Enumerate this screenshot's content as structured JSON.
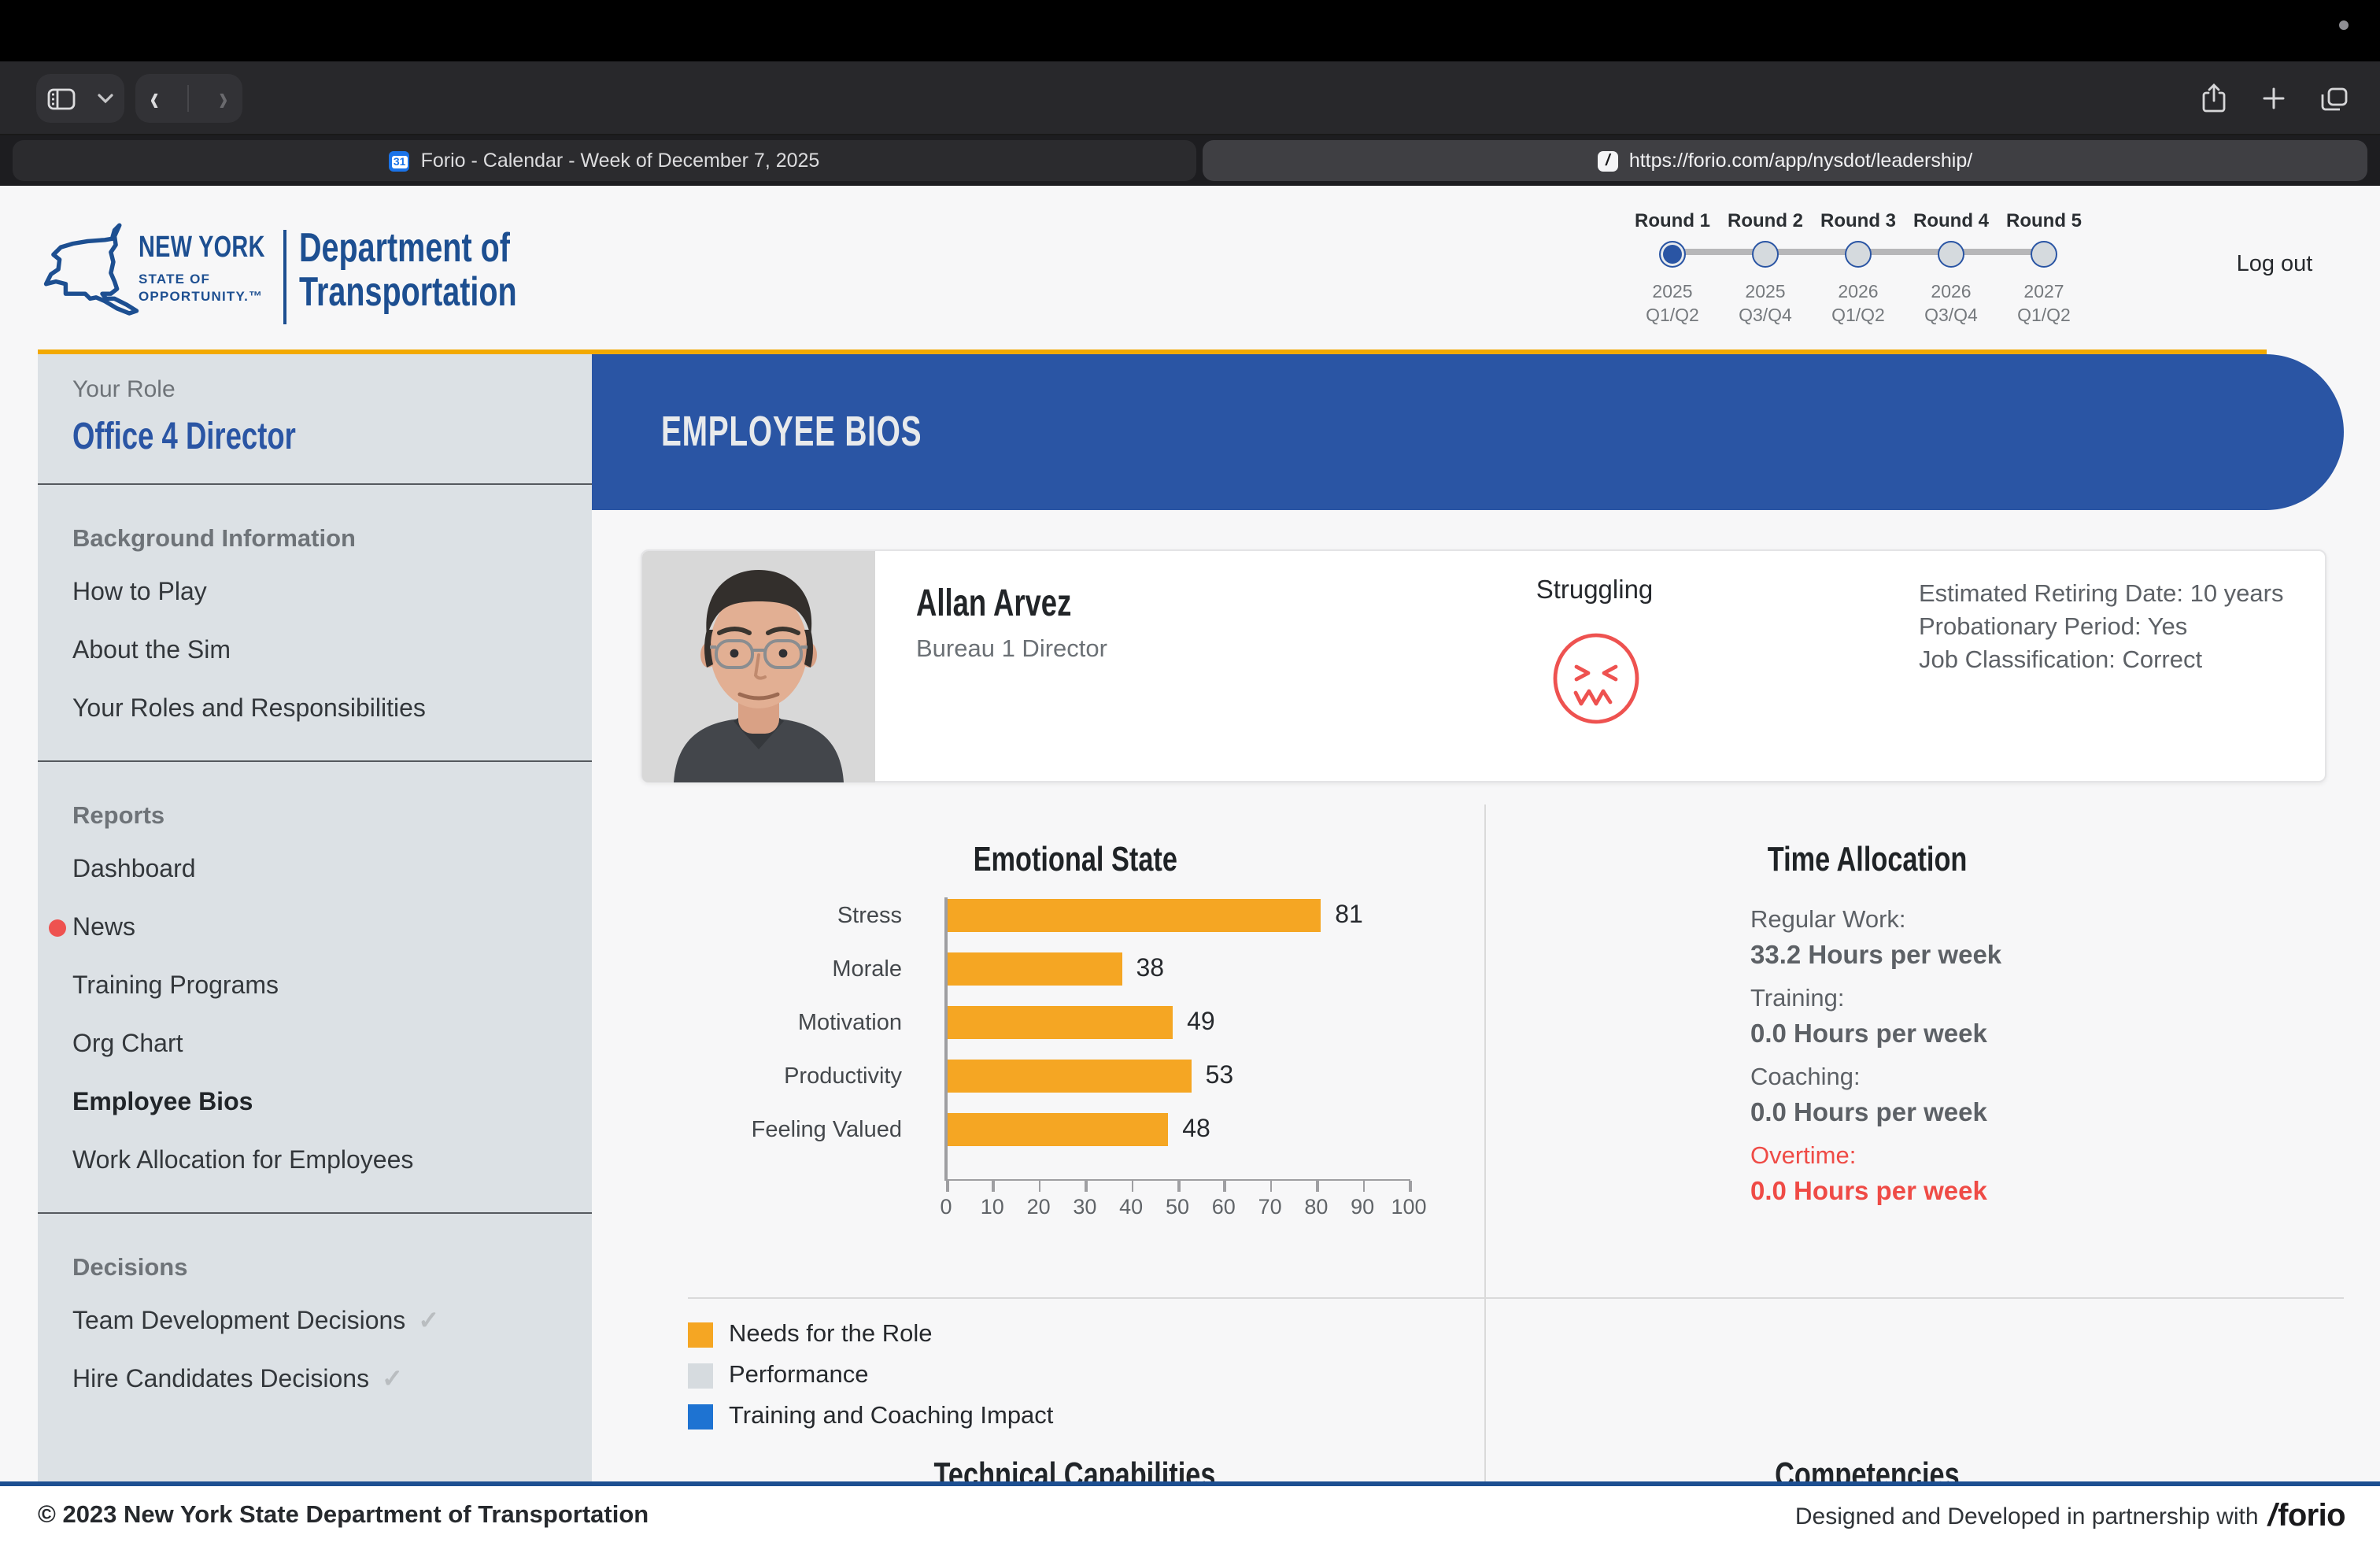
{
  "browser": {
    "toolbar": {
      "url_display": "forio.com",
      "icons": [
        "sidebar-toggle",
        "chevron-down",
        "back",
        "forward",
        "extension-lock",
        "reader",
        "reload",
        "share",
        "new-tab",
        "tab-overview"
      ]
    },
    "tabs": [
      {
        "title": "Forio - Calendar - Week of December 7, 2025",
        "favicon": "google-calendar",
        "active": false
      },
      {
        "title": "https://forio.com/app/nysdot/leadership/",
        "favicon": "forio",
        "active": true
      }
    ]
  },
  "header": {
    "logo": {
      "line1": "NEW YORK",
      "line2": "STATE OF",
      "line3": "OPPORTUNITY.™",
      "dept_line1": "Department of",
      "dept_line2": "Transportation"
    },
    "rounds": [
      {
        "label": "Round 1",
        "year": "2025",
        "quarters": "Q1/Q2",
        "active": true
      },
      {
        "label": "Round 2",
        "year": "2025",
        "quarters": "Q3/Q4",
        "active": false
      },
      {
        "label": "Round 3",
        "year": "2026",
        "quarters": "Q1/Q2",
        "active": false
      },
      {
        "label": "Round 4",
        "year": "2026",
        "quarters": "Q3/Q4",
        "active": false
      },
      {
        "label": "Round 5",
        "year": "2027",
        "quarters": "Q1/Q2",
        "active": false
      }
    ],
    "logout_label": "Log out"
  },
  "sidebar": {
    "sections": [
      {
        "heading": "Your Role",
        "role": "Office 4 Director"
      },
      {
        "heading": "Background Information",
        "items": [
          {
            "label": "How to Play"
          },
          {
            "label": "About the Sim"
          },
          {
            "label": "Your Roles and Responsibilities"
          }
        ]
      },
      {
        "heading": "Reports",
        "items": [
          {
            "label": "Dashboard"
          },
          {
            "label": "News",
            "dot": true
          },
          {
            "label": "Training Programs"
          },
          {
            "label": "Org Chart"
          },
          {
            "label": "Employee Bios",
            "active": true
          },
          {
            "label": "Work Allocation for Employees"
          }
        ]
      },
      {
        "heading": "Decisions",
        "items": [
          {
            "label": "Team Development Decisions",
            "check": true
          },
          {
            "label": "Hire Candidates Decisions",
            "check": true
          }
        ]
      }
    ]
  },
  "main": {
    "page_title": "EMPLOYEE BIOS",
    "employee": {
      "name": "Allan Arvez",
      "title": "Bureau 1 Director",
      "status": "Struggling",
      "status_icon": "confounded-face-icon",
      "details": [
        "Estimated Retiring Date: 10 years",
        "Probationary Period: Yes",
        "Job Classification: Correct"
      ]
    },
    "time_allocation": {
      "title": "Time Allocation",
      "items": [
        {
          "label": "Regular Work:",
          "value": "33.2 Hours per week",
          "alert": false
        },
        {
          "label": "Training:",
          "value": "0.0 Hours per week",
          "alert": false
        },
        {
          "label": "Coaching:",
          "value": "0.0 Hours per week",
          "alert": false
        },
        {
          "label": "Overtime:",
          "value": "0.0 Hours per week",
          "alert": true
        }
      ]
    },
    "legend": [
      {
        "label": "Needs for the Role",
        "color": "#F5A623"
      },
      {
        "label": "Performance",
        "color": "#D6DBDF"
      },
      {
        "label": "Training and Coaching Impact",
        "color": "#1E73D2"
      }
    ],
    "section_titles": {
      "left": "Technical Capabilities",
      "right": "Competencies"
    }
  },
  "chart_data": {
    "type": "bar",
    "orientation": "horizontal",
    "title": "Emotional State",
    "categories": [
      "Stress",
      "Morale",
      "Motivation",
      "Productivity",
      "Feeling Valued"
    ],
    "values": [
      81,
      38,
      49,
      53,
      48
    ],
    "xlim": [
      0,
      100
    ],
    "xticks": [
      0,
      10,
      20,
      30,
      40,
      50,
      60,
      70,
      80,
      90,
      100
    ],
    "bar_color": "#F5A623",
    "grid": false,
    "legend_position": "below"
  },
  "footer": {
    "left": "© 2023 New York State Department of Transportation",
    "right_text": "Designed and Developed in partnership with",
    "right_logo": "/forio"
  },
  "colors": {
    "brand_blue": "#2A55A4",
    "logo_blue": "#1D4F91",
    "gold": "#F2A900",
    "bar_orange": "#F5A623",
    "alert_red": "#EF4B46",
    "news_dot": "#EE5250",
    "legend_gray": "#D6DBDF",
    "legend_blue": "#1E73D2",
    "footer_blue": "#1D4F91",
    "sidebar_bg": "#DCE1E5"
  }
}
